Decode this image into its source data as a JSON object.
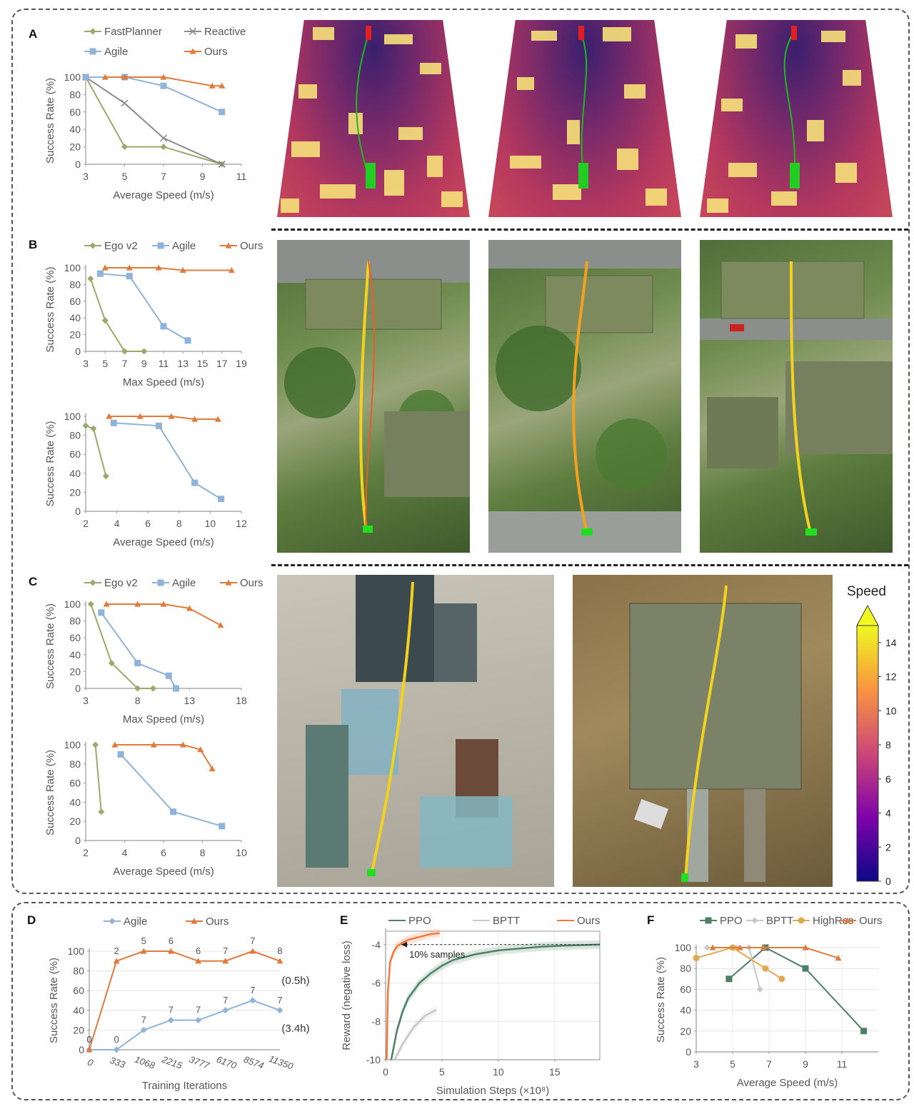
{
  "panels": {
    "A": "A",
    "B": "B",
    "C": "C",
    "D": "D",
    "E": "E",
    "F": "F"
  },
  "colors": {
    "fastplanner": "#9aaa6a",
    "reactive": "#8c8c8c",
    "agile": "#8fb3d9",
    "ours": "#e07b3c",
    "egov2": "#9aaa6a",
    "ppo": "#4e8068",
    "bptt": "#c8c8c8",
    "highres": "#e1a850",
    "ours_e": "#f07a3a"
  },
  "colorbar": {
    "title": "Speed",
    "ticks": [
      "0",
      "2",
      "4",
      "6",
      "8",
      "10",
      "12",
      "14"
    ]
  },
  "chart_data": [
    {
      "id": "A",
      "type": "line",
      "xlabel": "Average Speed (m/s)",
      "ylabel": "Success Rate (%)",
      "xlim": [
        3,
        11
      ],
      "ylim": [
        0,
        100
      ],
      "xticks": [
        "3",
        "5",
        "7",
        "9",
        "11"
      ],
      "yticks": [
        "0",
        "20",
        "40",
        "60",
        "80",
        "100"
      ],
      "series": [
        {
          "name": "FastPlanner",
          "marker": "diamond",
          "x": [
            3,
            5,
            7,
            10
          ],
          "y": [
            100,
            20,
            20,
            0
          ]
        },
        {
          "name": "Reactive",
          "marker": "x",
          "x": [
            3,
            5,
            7,
            10
          ],
          "y": [
            100,
            70,
            30,
            0
          ]
        },
        {
          "name": "Agile",
          "marker": "square",
          "x": [
            3,
            5,
            7,
            10
          ],
          "y": [
            100,
            100,
            90,
            60
          ]
        },
        {
          "name": "Ours",
          "marker": "triangle",
          "x": [
            4,
            5,
            7,
            9.5,
            10
          ],
          "y": [
            100,
            100,
            100,
            90,
            90
          ]
        }
      ]
    },
    {
      "id": "B1",
      "type": "line",
      "xlabel": "Max Speed (m/s)",
      "ylabel": "Success Rate (%)",
      "xlim": [
        3,
        19
      ],
      "ylim": [
        0,
        100
      ],
      "xticks": [
        "3",
        "5",
        "7",
        "9",
        "11",
        "13",
        "15",
        "17",
        "19"
      ],
      "yticks": [
        "0",
        "20",
        "40",
        "60",
        "80",
        "100"
      ],
      "series": [
        {
          "name": "Ego v2",
          "marker": "diamond",
          "x": [
            3.5,
            5,
            7,
            9
          ],
          "y": [
            87,
            37,
            0,
            0
          ]
        },
        {
          "name": "Agile",
          "marker": "square",
          "x": [
            4.5,
            7.5,
            11,
            13.5
          ],
          "y": [
            93,
            90,
            30,
            13
          ]
        },
        {
          "name": "Ours",
          "marker": "triangle",
          "x": [
            5,
            7.5,
            10.5,
            13,
            18
          ],
          "y": [
            100,
            100,
            100,
            97,
            97
          ]
        }
      ]
    },
    {
      "id": "B2",
      "type": "line",
      "xlabel": "Average Speed (m/s)",
      "ylabel": "Success Rate (%)",
      "xlim": [
        2,
        12
      ],
      "ylim": [
        0,
        100
      ],
      "xticks": [
        "2",
        "4",
        "6",
        "8",
        "10",
        "12"
      ],
      "yticks": [
        "0",
        "20",
        "40",
        "60",
        "80",
        "100"
      ],
      "series": [
        {
          "name": "Ego v2",
          "marker": "diamond",
          "x": [
            2,
            2.5,
            3.3
          ],
          "y": [
            90,
            87,
            37
          ]
        },
        {
          "name": "Agile",
          "marker": "square",
          "x": [
            3.8,
            6.7,
            9,
            10.7
          ],
          "y": [
            93,
            90,
            30,
            13
          ]
        },
        {
          "name": "Ours",
          "marker": "triangle",
          "x": [
            3.5,
            5.5,
            7.5,
            9,
            10.5
          ],
          "y": [
            100,
            100,
            100,
            97,
            97
          ]
        }
      ]
    },
    {
      "id": "C1",
      "type": "line",
      "xlabel": "Max Speed (m/s)",
      "ylabel": "Success Rate (%)",
      "xlim": [
        3,
        18
      ],
      "ylim": [
        0,
        100
      ],
      "xticks": [
        "3",
        "8",
        "13",
        "18"
      ],
      "yticks": [
        "0",
        "20",
        "40",
        "60",
        "80",
        "100"
      ],
      "series": [
        {
          "name": "Ego v2",
          "marker": "diamond",
          "x": [
            3.5,
            5.5,
            8,
            9.5
          ],
          "y": [
            100,
            30,
            0,
            0
          ]
        },
        {
          "name": "Agile",
          "marker": "square",
          "x": [
            4.5,
            8,
            11,
            11.7
          ],
          "y": [
            90,
            30,
            15,
            0
          ]
        },
        {
          "name": "Ours",
          "marker": "triangle",
          "x": [
            5,
            8,
            10.5,
            13,
            16
          ],
          "y": [
            100,
            100,
            100,
            95,
            75
          ]
        }
      ]
    },
    {
      "id": "C2",
      "type": "line",
      "xlabel": "Average Speed (m/s)",
      "ylabel": "Success Rate (%)",
      "xlim": [
        2,
        10
      ],
      "ylim": [
        0,
        100
      ],
      "xticks": [
        "2",
        "4",
        "6",
        "8",
        "10"
      ],
      "yticks": [
        "0",
        "20",
        "40",
        "60",
        "80",
        "100"
      ],
      "series": [
        {
          "name": "Ego v2",
          "marker": "diamond",
          "x": [
            2.5,
            2.8
          ],
          "y": [
            100,
            30
          ]
        },
        {
          "name": "Agile",
          "marker": "square",
          "x": [
            3.8,
            6.5,
            9
          ],
          "y": [
            90,
            30,
            15
          ]
        },
        {
          "name": "Ours",
          "marker": "triangle",
          "x": [
            3.5,
            5.5,
            7,
            7.9,
            8.5
          ],
          "y": [
            100,
            100,
            100,
            95,
            75
          ]
        }
      ]
    },
    {
      "id": "D",
      "type": "line",
      "xlabel": "Training Iterations",
      "ylabel": "Success Rate (%)",
      "ylim": [
        0,
        100
      ],
      "categories": [
        "0",
        "333",
        "1068",
        "2215",
        "3777",
        "6170",
        "8574",
        "11350"
      ],
      "yticks": [
        "0",
        "20",
        "40",
        "60",
        "80",
        "100"
      ],
      "series": [
        {
          "name": "Agile",
          "marker": "diamond",
          "values": [
            0,
            0,
            20,
            30,
            30,
            40,
            50,
            40
          ],
          "labels": [
            "0",
            "0",
            "7",
            "7",
            "7",
            "7",
            "7",
            "7"
          ]
        },
        {
          "name": "Ours",
          "marker": "triangle",
          "values": [
            0,
            90,
            100,
            100,
            90,
            90,
            100,
            90
          ],
          "labels": [
            "0",
            "2",
            "5",
            "6",
            "6",
            "7",
            "7",
            "8"
          ]
        }
      ],
      "annotations": {
        "ours_time": "(0.5h)",
        "agile_time": "(3.4h)"
      }
    },
    {
      "id": "E",
      "type": "line",
      "xlabel": "Simulation Steps (×10⁸)",
      "ylabel": "Reward (negative loss)",
      "xlim": [
        0,
        19
      ],
      "ylim": [
        -10,
        -3.3
      ],
      "xticks": [
        "0",
        "5",
        "10",
        "15"
      ],
      "yticks": [
        "-10",
        "-8",
        "-6",
        "-4"
      ],
      "series": [
        {
          "name": "PPO",
          "x": [
            0.5,
            1,
            1.5,
            2,
            3,
            4,
            5,
            6,
            8,
            10,
            12,
            14,
            16,
            19
          ],
          "y": [
            -10,
            -8.5,
            -7.5,
            -6.8,
            -6.0,
            -5.5,
            -5.1,
            -4.8,
            -4.5,
            -4.3,
            -4.2,
            -4.1,
            -4.05,
            -4.0
          ]
        },
        {
          "name": "BPTT",
          "x": [
            0.8,
            1.5,
            2.5,
            3.5,
            4.5
          ],
          "y": [
            -10,
            -9.2,
            -8.3,
            -7.7,
            -7.4
          ]
        },
        {
          "name": "Ours",
          "x": [
            0.1,
            0.2,
            0.4,
            0.7,
            1,
            1.5,
            2,
            3,
            4,
            4.8
          ],
          "y": [
            -10,
            -6.5,
            -4.9,
            -4.4,
            -4.1,
            -3.9,
            -3.75,
            -3.6,
            -3.45,
            -3.4
          ]
        }
      ],
      "annotation": "10% samples"
    },
    {
      "id": "F",
      "type": "line",
      "xlabel": "Average Speed (m/s)",
      "ylabel": "Success Rate (%)",
      "xlim": [
        3,
        13
      ],
      "ylim": [
        0,
        100
      ],
      "xticks": [
        "3",
        "5",
        "7",
        "9",
        "11"
      ],
      "yticks": [
        "0",
        "20",
        "40",
        "60",
        "80",
        "100"
      ],
      "series": [
        {
          "name": "PPO",
          "marker": "square",
          "x": [
            4.8,
            6.8,
            9,
            12.2
          ],
          "y": [
            70,
            100,
            80,
            20
          ]
        },
        {
          "name": "BPTT",
          "marker": "diamond",
          "x": [
            3.6,
            5.2,
            5.9,
            6.5
          ],
          "y": [
            100,
            100,
            100,
            60
          ]
        },
        {
          "name": "HighRes",
          "marker": "circle",
          "x": [
            3,
            5,
            6.8,
            7.7
          ],
          "y": [
            90,
            100,
            80,
            70
          ]
        },
        {
          "name": "Ours",
          "marker": "triangle",
          "x": [
            3.9,
            5.4,
            6.7,
            9,
            10.8
          ],
          "y": [
            100,
            100,
            100,
            100,
            90
          ]
        }
      ]
    }
  ]
}
